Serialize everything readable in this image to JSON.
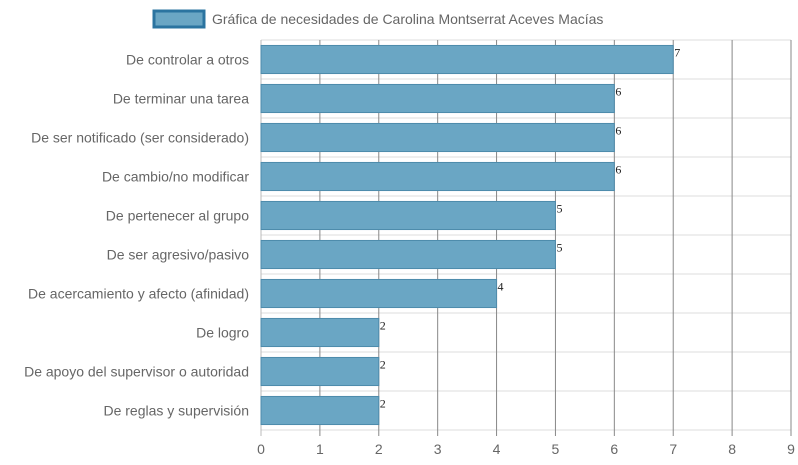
{
  "chart_data": {
    "type": "bar",
    "orientation": "horizontal",
    "categories": [
      "De controlar a otros",
      "De terminar una tarea",
      "De ser notificado (ser considerado)",
      "De cambio/no modificar",
      "De pertenecer al grupo",
      "De ser agresivo/pasivo",
      "De acercamiento y afecto (afinidad)",
      "De logro",
      "De apoyo del supervisor o autoridad",
      "De reglas y supervisión"
    ],
    "series": [
      {
        "name": "Gráfica de necesidades de Carolina Montserrat Aceves Macías",
        "values": [
          7,
          6,
          6,
          6,
          5,
          5,
          4,
          2,
          2,
          2
        ]
      }
    ],
    "xlim": [
      0,
      9
    ],
    "xticks": [
      "0",
      "1",
      "2",
      "3",
      "4",
      "5",
      "6",
      "7",
      "8",
      "9"
    ],
    "legend_position": "top",
    "grid": true,
    "colors": {
      "bar_fill": "#6aa6c4",
      "bar_stroke": "#4e8bab",
      "legend_fill": "#6aa6c4",
      "legend_stroke": "#2b74a0",
      "grid": "#dddddd",
      "grid_major": "#888888"
    }
  }
}
